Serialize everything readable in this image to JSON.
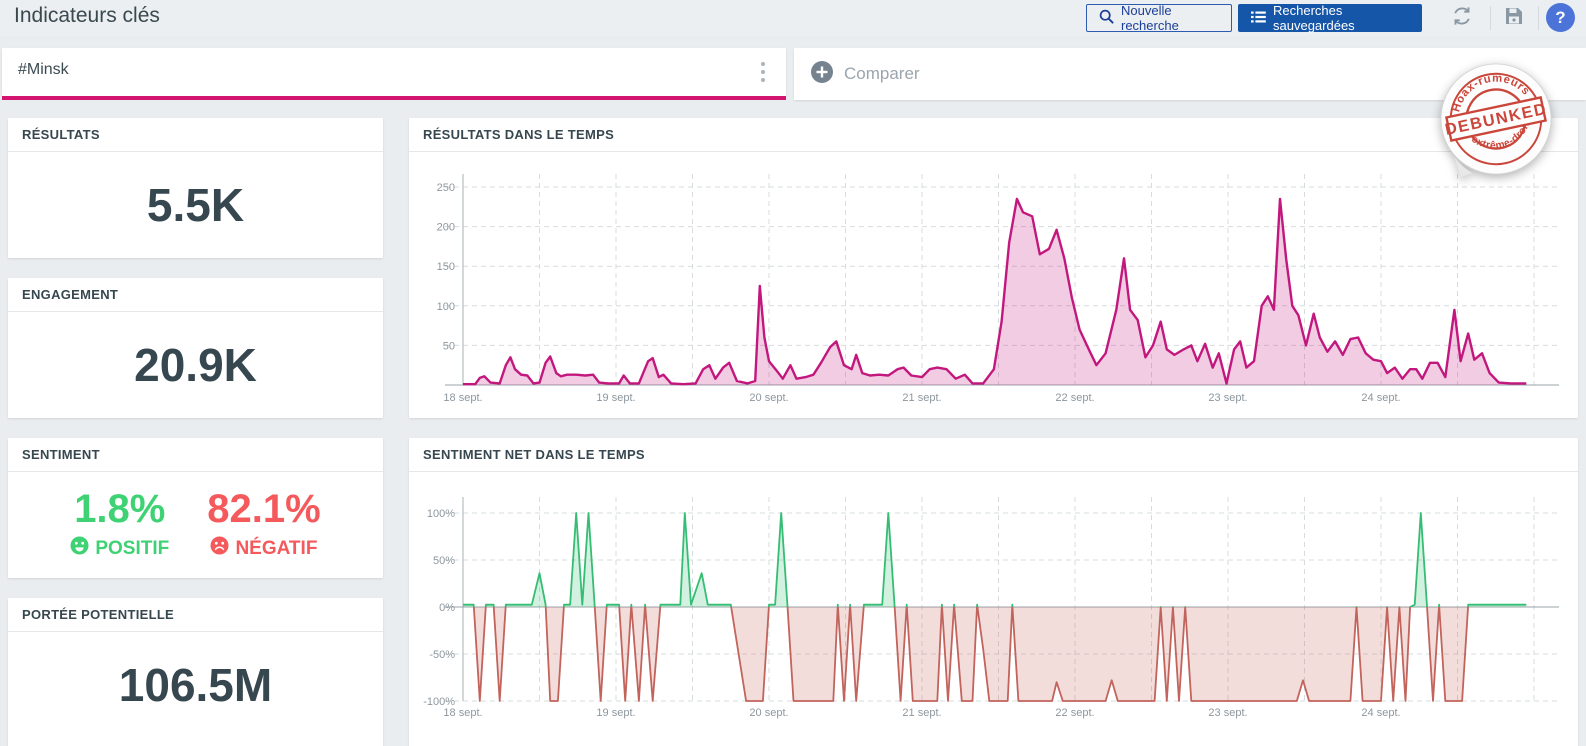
{
  "page_title": "Indicateurs clés",
  "toolbar": {
    "new_search": "Nouvelle recherche",
    "saved_searches": "Recherches sauvegardées",
    "help_glyph": "?",
    "icons": {
      "new_search": "magnifier-icon",
      "saved_searches": "list-icon",
      "refresh": "circular-arrows-icon",
      "save": "floppy-disk-icon",
      "help": "question-mark-icon"
    }
  },
  "search_bar": {
    "query": "#Minsk",
    "compare": "Comparer",
    "icons": {
      "compare_add": "plus-circle-icon",
      "query_menu": "kebab-vertical-icon"
    }
  },
  "stamp": {
    "arc_top": "Hoax-rumeurs",
    "center": "DEBUNKED",
    "arc_bottom": "d'extrême-droite"
  },
  "kpi_cards": [
    {
      "id": "results",
      "label": "RÉSULTATS",
      "value": "5.5K"
    },
    {
      "id": "engagement",
      "label": "ENGAGEMENT",
      "value": "20.9K"
    },
    {
      "id": "sentiment",
      "label": "SENTIMENT",
      "positive": {
        "value": "1.8%",
        "label": "POSITIF",
        "icon": "smiley-face-icon"
      },
      "negative": {
        "value": "82.1%",
        "label": "NÉGATIF",
        "icon": "frown-face-icon"
      }
    },
    {
      "id": "reach",
      "label": "PORTÉE POTENTIELLE",
      "value": "106.5M"
    }
  ],
  "colors": {
    "accent_pink": "#d4156f",
    "positive_green": "#3ed274",
    "negative_red": "#f4595c",
    "chart_pink_line": "#c2187e",
    "chart_green_line": "#35bd73",
    "chart_red_line": "#c2635c",
    "saved_button_blue": "#1656a8",
    "help_blue": "#4b73d8"
  },
  "chart_data": [
    {
      "type": "area",
      "title": "RÉSULTATS DANS LE TEMPS",
      "x_unit": "date (septembre)",
      "xlim": [
        18,
        25
      ],
      "ylim": [
        0,
        270
      ],
      "grid": "dashed",
      "legend": "none",
      "x_ticks": [
        {
          "x": 18,
          "label": "18 sept."
        },
        {
          "x": 19,
          "label": "19 sept."
        },
        {
          "x": 20,
          "label": "20 sept."
        },
        {
          "x": 21,
          "label": "21 sept."
        },
        {
          "x": 22,
          "label": "22 sept."
        },
        {
          "x": 23,
          "label": "23 sept."
        },
        {
          "x": 24,
          "label": "24 sept."
        }
      ],
      "y_ticks": [
        {
          "v": 50,
          "label": "50"
        },
        {
          "v": 100,
          "label": "100"
        },
        {
          "v": 150,
          "label": "150"
        },
        {
          "v": 200,
          "label": "200"
        },
        {
          "v": 250,
          "label": "250"
        }
      ],
      "baseline": 0,
      "line_color": "#c2187e",
      "fill_color": "rgba(194,24,126,0.22)",
      "points": [
        [
          18.0,
          1
        ],
        [
          18.08,
          1
        ],
        [
          18.11,
          9
        ],
        [
          18.14,
          11
        ],
        [
          18.18,
          3
        ],
        [
          18.24,
          2
        ],
        [
          18.28,
          25
        ],
        [
          18.31,
          35
        ],
        [
          18.34,
          20
        ],
        [
          18.38,
          13
        ],
        [
          18.42,
          12
        ],
        [
          18.46,
          2
        ],
        [
          18.5,
          3
        ],
        [
          18.54,
          28
        ],
        [
          18.57,
          36
        ],
        [
          18.61,
          15
        ],
        [
          18.64,
          11
        ],
        [
          18.68,
          13
        ],
        [
          18.74,
          13
        ],
        [
          18.8,
          12
        ],
        [
          18.85,
          13
        ],
        [
          18.89,
          3
        ],
        [
          18.95,
          2
        ],
        [
          19.02,
          2
        ],
        [
          19.05,
          12
        ],
        [
          19.09,
          2
        ],
        [
          19.15,
          2
        ],
        [
          19.21,
          30
        ],
        [
          19.24,
          34
        ],
        [
          19.28,
          10
        ],
        [
          19.31,
          13
        ],
        [
          19.36,
          2
        ],
        [
          19.44,
          1
        ],
        [
          19.52,
          2
        ],
        [
          19.57,
          20
        ],
        [
          19.61,
          25
        ],
        [
          19.65,
          8
        ],
        [
          19.7,
          22
        ],
        [
          19.74,
          28
        ],
        [
          19.79,
          5
        ],
        [
          19.86,
          2
        ],
        [
          19.91,
          5
        ],
        [
          19.94,
          125
        ],
        [
          19.97,
          60
        ],
        [
          20.0,
          30
        ],
        [
          20.05,
          18
        ],
        [
          20.09,
          8
        ],
        [
          20.14,
          25
        ],
        [
          20.18,
          8
        ],
        [
          20.24,
          10
        ],
        [
          20.29,
          13
        ],
        [
          20.34,
          28
        ],
        [
          20.4,
          48
        ],
        [
          20.44,
          55
        ],
        [
          20.49,
          25
        ],
        [
          20.54,
          20
        ],
        [
          20.57,
          38
        ],
        [
          20.61,
          15
        ],
        [
          20.66,
          12
        ],
        [
          20.72,
          13
        ],
        [
          20.78,
          12
        ],
        [
          20.84,
          20
        ],
        [
          20.88,
          22
        ],
        [
          20.93,
          12
        ],
        [
          21.0,
          10
        ],
        [
          21.05,
          20
        ],
        [
          21.1,
          22
        ],
        [
          21.16,
          20
        ],
        [
          21.22,
          8
        ],
        [
          21.28,
          13
        ],
        [
          21.33,
          2
        ],
        [
          21.4,
          2
        ],
        [
          21.47,
          20
        ],
        [
          21.52,
          80
        ],
        [
          21.57,
          180
        ],
        [
          21.62,
          235
        ],
        [
          21.66,
          218
        ],
        [
          21.72,
          213
        ],
        [
          21.77,
          165
        ],
        [
          21.83,
          172
        ],
        [
          21.88,
          196
        ],
        [
          21.93,
          160
        ],
        [
          21.98,
          110
        ],
        [
          22.03,
          70
        ],
        [
          22.09,
          45
        ],
        [
          22.14,
          25
        ],
        [
          22.2,
          40
        ],
        [
          22.27,
          95
        ],
        [
          22.32,
          160
        ],
        [
          22.36,
          95
        ],
        [
          22.41,
          82
        ],
        [
          22.46,
          35
        ],
        [
          22.51,
          50
        ],
        [
          22.56,
          80
        ],
        [
          22.6,
          45
        ],
        [
          22.65,
          38
        ],
        [
          22.71,
          45
        ],
        [
          22.76,
          50
        ],
        [
          22.8,
          30
        ],
        [
          22.85,
          52
        ],
        [
          22.9,
          22
        ],
        [
          22.94,
          40
        ],
        [
          22.99,
          2
        ],
        [
          23.04,
          45
        ],
        [
          23.08,
          55
        ],
        [
          23.12,
          22
        ],
        [
          23.17,
          30
        ],
        [
          23.22,
          100
        ],
        [
          23.26,
          112
        ],
        [
          23.3,
          95
        ],
        [
          23.34,
          235
        ],
        [
          23.38,
          160
        ],
        [
          23.42,
          100
        ],
        [
          23.46,
          88
        ],
        [
          23.51,
          50
        ],
        [
          23.56,
          90
        ],
        [
          23.6,
          60
        ],
        [
          23.65,
          42
        ],
        [
          23.7,
          55
        ],
        [
          23.75,
          38
        ],
        [
          23.8,
          58
        ],
        [
          23.85,
          60
        ],
        [
          23.9,
          40
        ],
        [
          23.95,
          32
        ],
        [
          24.0,
          30
        ],
        [
          24.04,
          15
        ],
        [
          24.09,
          22
        ],
        [
          24.14,
          8
        ],
        [
          24.19,
          20
        ],
        [
          24.23,
          20
        ],
        [
          24.27,
          8
        ],
        [
          24.32,
          28
        ],
        [
          24.37,
          28
        ],
        [
          24.42,
          10
        ],
        [
          24.48,
          95
        ],
        [
          24.52,
          30
        ],
        [
          24.57,
          65
        ],
        [
          24.61,
          32
        ],
        [
          24.66,
          40
        ],
        [
          24.71,
          15
        ],
        [
          24.77,
          3
        ],
        [
          24.85,
          2
        ],
        [
          24.95,
          2
        ]
      ]
    },
    {
      "type": "area-diverging",
      "title": "SENTIMENT NET DANS LE TEMPS",
      "x_unit": "date (septembre)",
      "xlim": [
        18,
        25
      ],
      "ylim": [
        -115,
        115
      ],
      "grid": "dashed",
      "legend": "none",
      "x_ticks": [
        {
          "x": 18,
          "label": "18 sept."
        },
        {
          "x": 19,
          "label": "19 sept."
        },
        {
          "x": 20,
          "label": "20 sept."
        },
        {
          "x": 21,
          "label": "21 sept."
        },
        {
          "x": 22,
          "label": "22 sept."
        },
        {
          "x": 23,
          "label": "23 sept."
        },
        {
          "x": 24,
          "label": "24 sept."
        }
      ],
      "y_ticks": [
        {
          "v": 100,
          "label": "100%"
        },
        {
          "v": 50,
          "label": "50%"
        },
        {
          "v": 0,
          "label": "0%"
        },
        {
          "v": -50,
          "label": "-50%"
        },
        {
          "v": -100,
          "label": "-100%"
        }
      ],
      "baseline": 0,
      "pos_line": "#35bd73",
      "pos_fill": "rgba(53,189,115,0.22)",
      "neg_line": "#c2635c",
      "neg_fill": "rgba(194,99,92,0.22)",
      "points": [
        [
          18.0,
          2.5
        ],
        [
          18.07,
          2.5
        ],
        [
          18.11,
          -100
        ],
        [
          18.15,
          2.5
        ],
        [
          18.2,
          2.5
        ],
        [
          18.24,
          -100
        ],
        [
          18.28,
          2.5
        ],
        [
          18.45,
          2.5
        ],
        [
          18.5,
          36
        ],
        [
          18.54,
          2.5
        ],
        [
          18.57,
          -100
        ],
        [
          18.62,
          -100
        ],
        [
          18.66,
          2.5
        ],
        [
          18.7,
          2.5
        ],
        [
          18.74,
          100
        ],
        [
          18.78,
          2.5
        ],
        [
          18.82,
          100
        ],
        [
          18.86,
          2.5
        ],
        [
          18.9,
          -100
        ],
        [
          18.94,
          2.5
        ],
        [
          19.02,
          2.5
        ],
        [
          19.06,
          -100
        ],
        [
          19.1,
          2.5
        ],
        [
          19.15,
          -100
        ],
        [
          19.19,
          2.5
        ],
        [
          19.24,
          -100
        ],
        [
          19.29,
          2.5
        ],
        [
          19.42,
          2.5
        ],
        [
          19.45,
          100
        ],
        [
          19.49,
          2.5
        ],
        [
          19.56,
          36
        ],
        [
          19.6,
          2.5
        ],
        [
          19.75,
          2.5
        ],
        [
          19.85,
          -100
        ],
        [
          19.96,
          -100
        ],
        [
          20.0,
          2.5
        ],
        [
          20.04,
          2.5
        ],
        [
          20.08,
          100
        ],
        [
          20.12,
          2.5
        ],
        [
          20.16,
          -100
        ],
        [
          20.42,
          -100
        ],
        [
          20.45,
          2.5
        ],
        [
          20.49,
          -100
        ],
        [
          20.53,
          2.5
        ],
        [
          20.57,
          -100
        ],
        [
          20.62,
          2.5
        ],
        [
          20.68,
          2.5
        ],
        [
          20.74,
          2.5
        ],
        [
          20.78,
          100
        ],
        [
          20.82,
          2.5
        ],
        [
          20.86,
          -100
        ],
        [
          20.9,
          2.5
        ],
        [
          20.94,
          -100
        ],
        [
          21.1,
          -100
        ],
        [
          21.13,
          2.5
        ],
        [
          21.17,
          -100
        ],
        [
          21.21,
          2.5
        ],
        [
          21.26,
          -100
        ],
        [
          21.33,
          -100
        ],
        [
          21.36,
          2.5
        ],
        [
          21.4,
          -45
        ],
        [
          21.44,
          -100
        ],
        [
          21.56,
          -100
        ],
        [
          21.59,
          2.5
        ],
        [
          21.63,
          -100
        ],
        [
          21.85,
          -100
        ],
        [
          21.88,
          -80
        ],
        [
          21.92,
          -100
        ],
        [
          22.2,
          -100
        ],
        [
          22.24,
          -78
        ],
        [
          22.28,
          -100
        ],
        [
          22.52,
          -100
        ],
        [
          22.56,
          0
        ],
        [
          22.6,
          -100
        ],
        [
          22.64,
          0
        ],
        [
          22.68,
          -100
        ],
        [
          22.72,
          0
        ],
        [
          22.76,
          -100
        ],
        [
          23.45,
          -100
        ],
        [
          23.49,
          -78
        ],
        [
          23.53,
          -100
        ],
        [
          23.8,
          -100
        ],
        [
          23.84,
          0
        ],
        [
          23.88,
          -100
        ],
        [
          24.0,
          -100
        ],
        [
          24.04,
          0
        ],
        [
          24.08,
          -100
        ],
        [
          24.12,
          0
        ],
        [
          24.16,
          -100
        ],
        [
          24.19,
          0
        ],
        [
          24.22,
          2.5
        ],
        [
          24.26,
          100
        ],
        [
          24.3,
          2.5
        ],
        [
          24.34,
          -100
        ],
        [
          24.38,
          2.5
        ],
        [
          24.42,
          -100
        ],
        [
          24.53,
          -100
        ],
        [
          24.57,
          2.5
        ],
        [
          24.95,
          2.5
        ]
      ]
    }
  ]
}
